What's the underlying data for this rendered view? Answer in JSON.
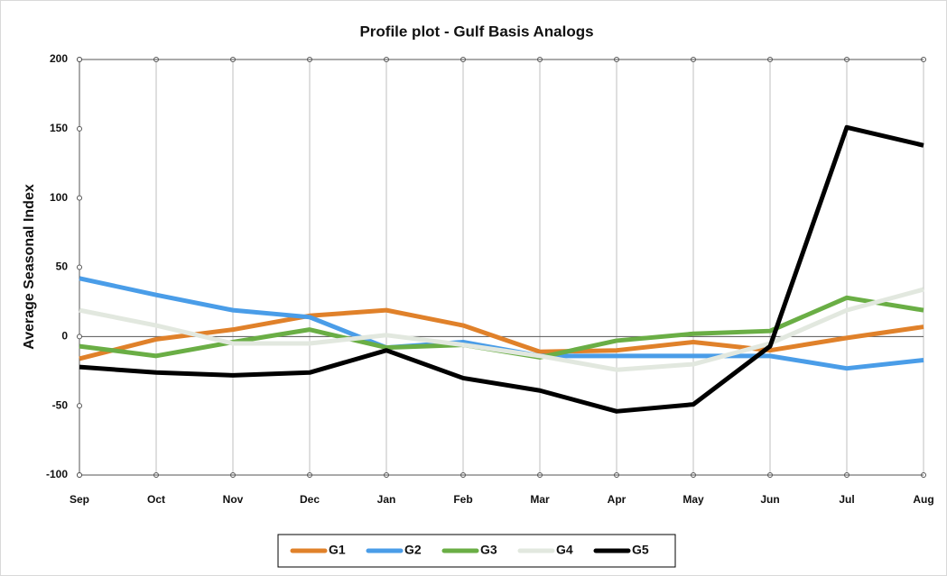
{
  "chart_data": {
    "type": "line",
    "title": "Profile plot - Gulf Basis Analogs",
    "y_label": "Average Seasonal Index",
    "categories": [
      "Sep",
      "Oct",
      "Nov",
      "Dec",
      "Jan",
      "Feb",
      "Mar",
      "Apr",
      "May",
      "Jun",
      "Jul",
      "Aug"
    ],
    "series": [
      {
        "name": "G1",
        "color": "#e0812a",
        "values": [
          -16,
          -2,
          5,
          15,
          19,
          8,
          -11,
          -10,
          -4,
          -10,
          -1,
          7
        ]
      },
      {
        "name": "G2",
        "color": "#4a9de8",
        "values": [
          42,
          30,
          19,
          14,
          -8,
          -4,
          -14,
          -14,
          -14,
          -14,
          -23,
          -17
        ]
      },
      {
        "name": "G3",
        "color": "#6aae45",
        "values": [
          -7,
          -14,
          -4,
          5,
          -8,
          -6,
          -15,
          -3,
          2,
          4,
          28,
          19
        ]
      },
      {
        "name": "G4",
        "color": "#e2e8df",
        "values": [
          19,
          8,
          -5,
          -5,
          1,
          -6,
          -14,
          -24,
          -20,
          -5,
          19,
          34
        ]
      },
      {
        "name": "G5",
        "color": "#000000",
        "values": [
          -22,
          -26,
          -28,
          -26,
          -10,
          -30,
          -39,
          -54,
          -49,
          -7,
          151,
          138
        ]
      }
    ],
    "ylim": [
      -100,
      200
    ],
    "yticks": [
      -100,
      -50,
      0,
      50,
      100,
      150,
      200
    ],
    "grid": true,
    "legend": "bottom"
  }
}
